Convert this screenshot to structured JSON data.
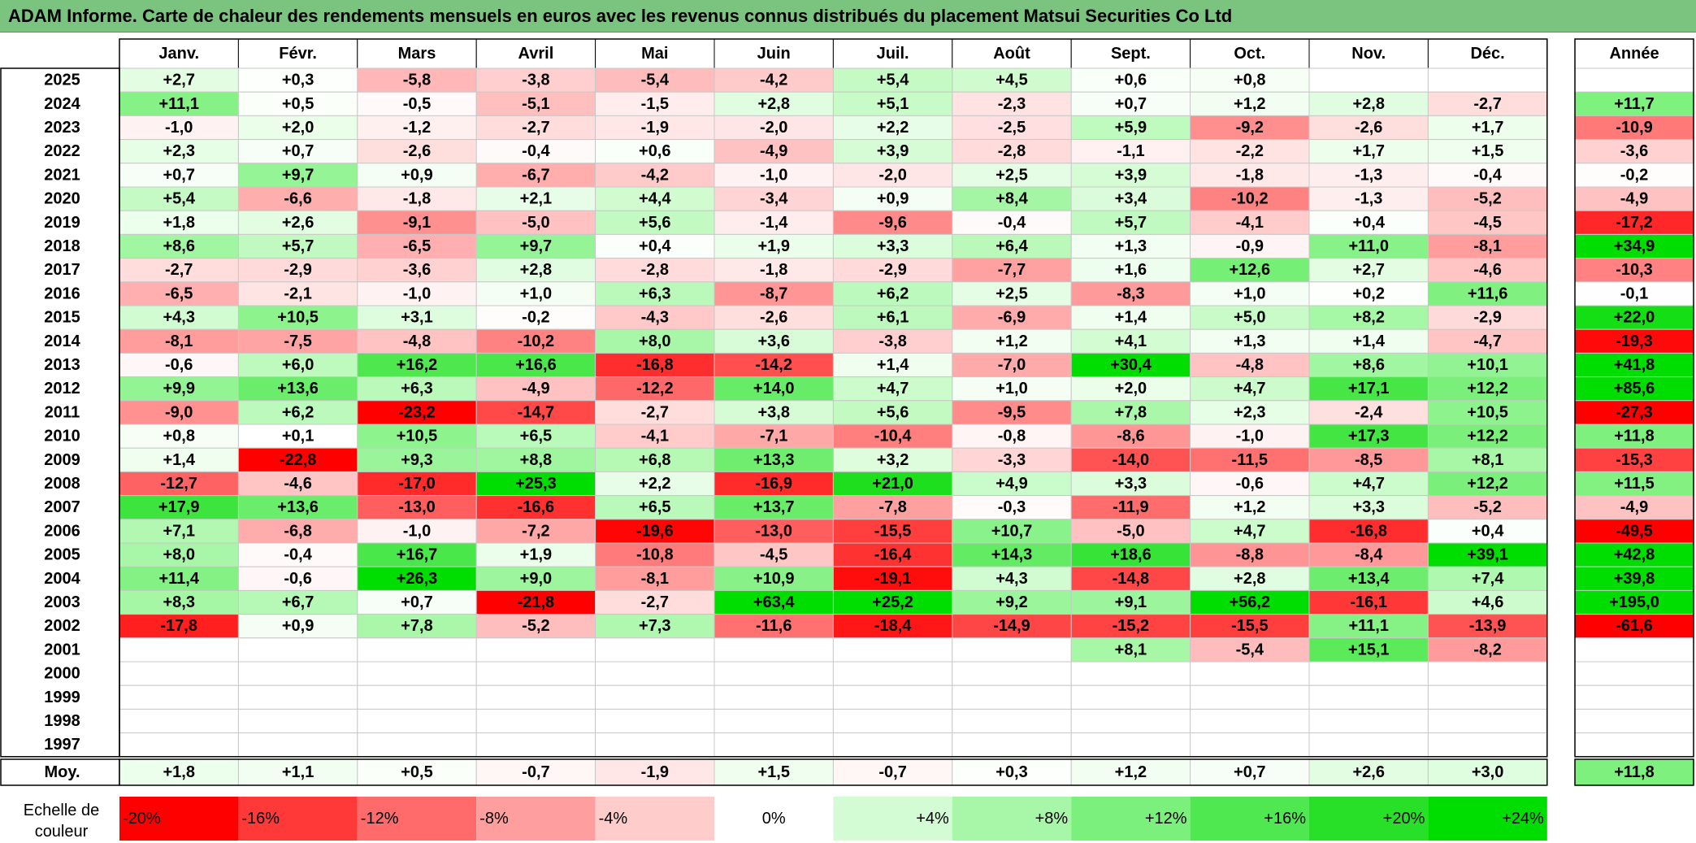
{
  "title": "ADAM Informe. Carte de chaleur des rendements mensuels en euros avec les revenus connus distribués du placement Matsui Securities Co Ltd",
  "chart_data": {
    "type": "heatmap",
    "columns": [
      "Janv.",
      "Févr.",
      "Mars",
      "Avril",
      "Mai",
      "Juin",
      "Juil.",
      "Août",
      "Sept.",
      "Oct.",
      "Nov.",
      "Déc."
    ],
    "annual_column": "Année",
    "average_row_label": "Moy.",
    "rows": [
      {
        "year": "2025",
        "values": [
          "+2,7",
          "+0,3",
          "-5,8",
          "-3,8",
          "-5,4",
          "-4,2",
          "+5,4",
          "+4,5",
          "+0,6",
          "+0,8",
          "",
          ""
        ],
        "annual": ""
      },
      {
        "year": "2024",
        "values": [
          "+11,1",
          "+0,5",
          "-0,5",
          "-5,1",
          "-1,5",
          "+2,8",
          "+5,1",
          "-2,3",
          "+0,7",
          "+1,2",
          "+2,8",
          "-2,7"
        ],
        "annual": "+11,7"
      },
      {
        "year": "2023",
        "values": [
          "-1,0",
          "+2,0",
          "-1,2",
          "-2,7",
          "-1,9",
          "-2,0",
          "+2,2",
          "-2,5",
          "+5,9",
          "-9,2",
          "-2,6",
          "+1,7"
        ],
        "annual": "-10,9"
      },
      {
        "year": "2022",
        "values": [
          "+2,3",
          "+0,7",
          "-2,6",
          "-0,4",
          "+0,6",
          "-4,9",
          "+3,9",
          "-2,8",
          "-1,1",
          "-2,2",
          "+1,7",
          "+1,5"
        ],
        "annual": "-3,6"
      },
      {
        "year": "2021",
        "values": [
          "+0,7",
          "+9,7",
          "+0,9",
          "-6,7",
          "-4,2",
          "-1,0",
          "-2,0",
          "+2,5",
          "+3,9",
          "-1,8",
          "-1,3",
          "-0,4"
        ],
        "annual": "-0,2"
      },
      {
        "year": "2020",
        "values": [
          "+5,4",
          "-6,6",
          "-1,8",
          "+2,1",
          "+4,4",
          "-3,4",
          "+0,9",
          "+8,4",
          "+3,4",
          "-10,2",
          "-1,3",
          "-5,2"
        ],
        "annual": "-4,9"
      },
      {
        "year": "2019",
        "values": [
          "+1,8",
          "+2,6",
          "-9,1",
          "-5,0",
          "+5,6",
          "-1,4",
          "-9,6",
          "-0,4",
          "+5,7",
          "-4,1",
          "+0,4",
          "-4,5"
        ],
        "annual": "-17,2"
      },
      {
        "year": "2018",
        "values": [
          "+8,6",
          "+5,7",
          "-6,5",
          "+9,7",
          "+0,4",
          "+1,9",
          "+3,3",
          "+6,4",
          "+1,3",
          "-0,9",
          "+11,0",
          "-8,1"
        ],
        "annual": "+34,9"
      },
      {
        "year": "2017",
        "values": [
          "-2,7",
          "-2,9",
          "-3,6",
          "+2,8",
          "-2,8",
          "-1,8",
          "-2,9",
          "-7,7",
          "+1,6",
          "+12,6",
          "+2,7",
          "-4,6"
        ],
        "annual": "-10,3"
      },
      {
        "year": "2016",
        "values": [
          "-6,5",
          "-2,1",
          "-1,0",
          "+1,0",
          "+6,3",
          "-8,7",
          "+6,2",
          "+2,5",
          "-8,3",
          "+1,0",
          "+0,2",
          "+11,6"
        ],
        "annual": "-0,1"
      },
      {
        "year": "2015",
        "values": [
          "+4,3",
          "+10,5",
          "+3,1",
          "-0,2",
          "-4,3",
          "-2,6",
          "+6,1",
          "-6,9",
          "+1,4",
          "+5,0",
          "+8,2",
          "-2,9"
        ],
        "annual": "+22,0"
      },
      {
        "year": "2014",
        "values": [
          "-8,1",
          "-7,5",
          "-4,8",
          "-10,2",
          "+8,0",
          "+3,6",
          "-3,8",
          "+1,2",
          "+4,1",
          "+1,3",
          "+1,4",
          "-4,7"
        ],
        "annual": "-19,3"
      },
      {
        "year": "2013",
        "values": [
          "-0,6",
          "+6,0",
          "+16,2",
          "+16,6",
          "-16,8",
          "-14,2",
          "+1,4",
          "-7,0",
          "+30,4",
          "-4,8",
          "+8,6",
          "+10,1"
        ],
        "annual": "+41,8"
      },
      {
        "year": "2012",
        "values": [
          "+9,9",
          "+13,6",
          "+6,3",
          "-4,9",
          "-12,2",
          "+14,0",
          "+4,7",
          "+1,0",
          "+2,0",
          "+4,7",
          "+17,1",
          "+12,2"
        ],
        "annual": "+85,6"
      },
      {
        "year": "2011",
        "values": [
          "-9,0",
          "+6,2",
          "-23,2",
          "-14,7",
          "-2,7",
          "+3,8",
          "+5,6",
          "-9,5",
          "+7,8",
          "+2,3",
          "-2,4",
          "+10,5"
        ],
        "annual": "-27,3"
      },
      {
        "year": "2010",
        "values": [
          "+0,8",
          "+0,1",
          "+10,5",
          "+6,5",
          "-4,1",
          "-7,1",
          "-10,4",
          "-0,8",
          "-8,6",
          "-1,0",
          "+17,3",
          "+12,2"
        ],
        "annual": "+11,8"
      },
      {
        "year": "2009",
        "values": [
          "+1,4",
          "-22,8",
          "+9,3",
          "+8,8",
          "+6,8",
          "+13,3",
          "+3,2",
          "-3,3",
          "-14,0",
          "-11,5",
          "-8,5",
          "+8,1"
        ],
        "annual": "-15,3"
      },
      {
        "year": "2008",
        "values": [
          "-12,7",
          "-4,6",
          "-17,0",
          "+25,3",
          "+2,2",
          "-16,9",
          "+21,0",
          "+4,9",
          "+3,3",
          "-0,6",
          "+4,7",
          "+12,2"
        ],
        "annual": "+11,5"
      },
      {
        "year": "2007",
        "values": [
          "+17,9",
          "+13,6",
          "-13,0",
          "-16,6",
          "+6,5",
          "+13,7",
          "-7,8",
          "-0,3",
          "-11,9",
          "+1,2",
          "+3,3",
          "-5,2"
        ],
        "annual": "-4,9"
      },
      {
        "year": "2006",
        "values": [
          "+7,1",
          "-6,8",
          "-1,0",
          "-7,2",
          "-19,6",
          "-13,0",
          "-15,5",
          "+10,7",
          "-5,0",
          "+4,7",
          "-16,8",
          "+0,4"
        ],
        "annual": "-49,5"
      },
      {
        "year": "2005",
        "values": [
          "+8,0",
          "-0,4",
          "+16,7",
          "+1,9",
          "-10,8",
          "-4,5",
          "-16,4",
          "+14,3",
          "+18,6",
          "-8,8",
          "-8,4",
          "+39,1"
        ],
        "annual": "+42,8"
      },
      {
        "year": "2004",
        "values": [
          "+11,4",
          "-0,6",
          "+26,3",
          "+9,0",
          "-8,1",
          "+10,9",
          "-19,1",
          "+4,3",
          "-14,8",
          "+2,8",
          "+13,4",
          "+7,4"
        ],
        "annual": "+39,8"
      },
      {
        "year": "2003",
        "values": [
          "+8,3",
          "+6,7",
          "+0,7",
          "-21,8",
          "-2,7",
          "+63,4",
          "+25,2",
          "+9,2",
          "+9,1",
          "+56,2",
          "-16,1",
          "+4,6"
        ],
        "annual": "+195,0"
      },
      {
        "year": "2002",
        "values": [
          "-17,8",
          "+0,9",
          "+7,8",
          "-5,2",
          "+7,3",
          "-11,6",
          "-18,4",
          "-14,9",
          "-15,2",
          "-15,5",
          "+11,1",
          "-13,9"
        ],
        "annual": "-61,6"
      },
      {
        "year": "2001",
        "values": [
          "",
          "",
          "",
          "",
          "",
          "",
          "",
          "",
          "+8,1",
          "-5,4",
          "+15,1",
          "-8,2"
        ],
        "annual": ""
      },
      {
        "year": "2000",
        "values": [
          "",
          "",
          "",
          "",
          "",
          "",
          "",
          "",
          "",
          "",
          "",
          ""
        ],
        "annual": ""
      },
      {
        "year": "1999",
        "values": [
          "",
          "",
          "",
          "",
          "",
          "",
          "",
          "",
          "",
          "",
          "",
          ""
        ],
        "annual": ""
      },
      {
        "year": "1998",
        "values": [
          "",
          "",
          "",
          "",
          "",
          "",
          "",
          "",
          "",
          "",
          "",
          ""
        ],
        "annual": ""
      },
      {
        "year": "1997",
        "values": [
          "",
          "",
          "",
          "",
          "",
          "",
          "",
          "",
          "",
          "",
          "",
          ""
        ],
        "annual": ""
      }
    ],
    "averages": [
      "+1,8",
      "+1,1",
      "+0,5",
      "-0,7",
      "-1,9",
      "+1,5",
      "-0,7",
      "+0,3",
      "+1,2",
      "+0,7",
      "+2,6",
      "+3,0"
    ],
    "average_annual": "+11,8",
    "scale": {
      "label": "Echelle de couleur",
      "steps": [
        {
          "label": "-20%",
          "value": -20,
          "color": "#ff0000"
        },
        {
          "label": "-16%",
          "value": -16,
          "color": "#ff3838"
        },
        {
          "label": "-12%",
          "value": -12,
          "color": "#ff6b6b"
        },
        {
          "label": "-8%",
          "value": -8,
          "color": "#ff9e9e"
        },
        {
          "label": "-4%",
          "value": -4,
          "color": "#ffcccc"
        },
        {
          "label": "0%",
          "value": 0,
          "color": "#ffffff"
        },
        {
          "label": "+4%",
          "value": 4,
          "color": "#d4fcd4"
        },
        {
          "label": "+8%",
          "value": 8,
          "color": "#a8f7a8"
        },
        {
          "label": "+12%",
          "value": 12,
          "color": "#7cf07c"
        },
        {
          "label": "+16%",
          "value": 16,
          "color": "#50e850"
        },
        {
          "label": "+20%",
          "value": 20,
          "color": "#28e028"
        },
        {
          "label": "+24%",
          "value": 24,
          "color": "#00dd00"
        }
      ]
    }
  }
}
